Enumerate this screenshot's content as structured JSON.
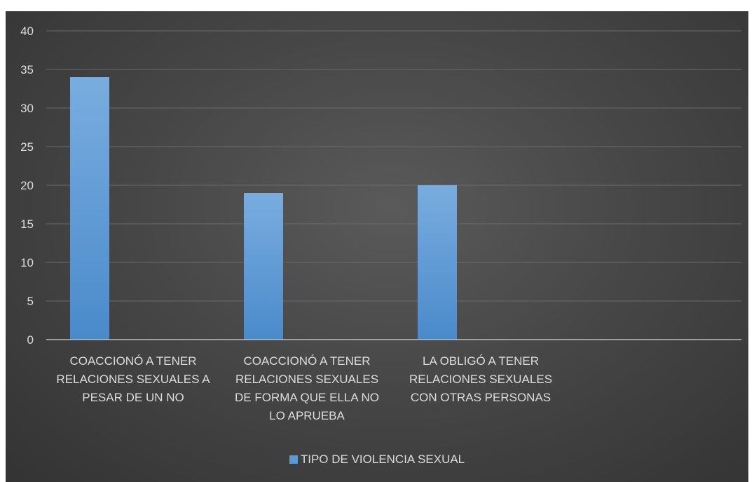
{
  "chart_data": {
    "type": "bar",
    "categories": [
      "COACCIONÓ A TENER RELACIONES SEXUALES A PESAR DE UN NO",
      "COACCIONÓ A TENER RELACIONES SEXUALES DE FORMA QUE ELLA NO LO APRUEBA",
      "LA OBLIGÓ A TENER RELACIONES SEXUALES CON OTRAS PERSONAS",
      ""
    ],
    "category_lines": [
      [
        "COACCIONÓ A TENER",
        "RELACIONES SEXUALES A",
        "PESAR DE UN NO"
      ],
      [
        "COACCIONÓ A TENER",
        "RELACIONES SEXUALES",
        "DE FORMA QUE ELLA NO",
        "LO APRUEBA"
      ],
      [
        "LA OBLIGÓ A TENER",
        "RELACIONES SEXUALES",
        "CON OTRAS PERSONAS"
      ],
      []
    ],
    "series": [
      {
        "name": "TIPO DE VIOLENCIA SEXUAL",
        "values": [
          34,
          19,
          20,
          null
        ],
        "color": "#5b9bd5"
      }
    ],
    "ylim": [
      0,
      40
    ],
    "yticks": [
      "0",
      "5",
      "10",
      "15",
      "20",
      "25",
      "30",
      "35",
      "40"
    ],
    "grid": true,
    "legend_position": "bottom",
    "background": "#404040"
  }
}
